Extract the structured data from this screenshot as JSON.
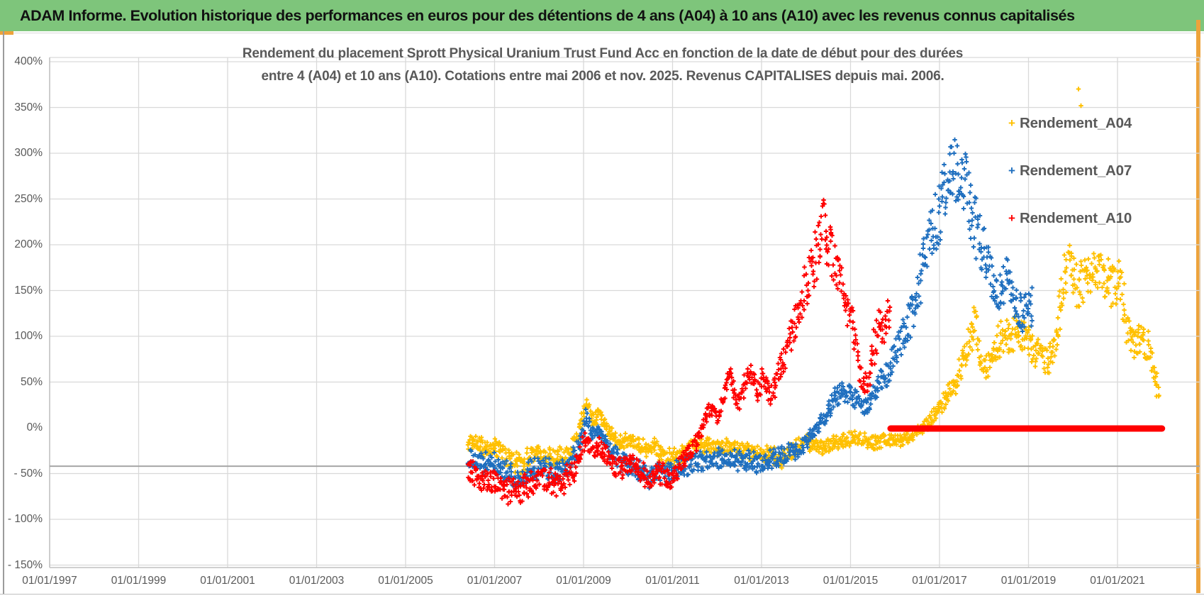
{
  "header": {
    "title": "ADAM Informe. Evolution historique des performances en euros pour des détentions de 4 ans (A04) à 10 ans (A10) avec les revenus connus capitalisés",
    "bar_color": "#7ec57b",
    "accent_color": "#eda33b"
  },
  "chart_data": {
    "type": "scatter",
    "title_line1": "Rendement du placement Sprott Physical Uranium Trust Fund Acc en fonction de la date de début pour des durées",
    "title_line2": "entre 4 (A04) et 10 ans (A10). Cotations entre mai 2006 et nov. 2025. Revenus CAPITALISES depuis mai. 2006.",
    "grid_color": "#d9d9d9",
    "axis_line_color": "#a6a6a6",
    "x_axis": {
      "range_years": [
        1997.0,
        2022.85
      ],
      "ticks": [
        {
          "year": 1997,
          "label": "01/01/1997"
        },
        {
          "year": 1999,
          "label": "01/01/1999"
        },
        {
          "year": 2001,
          "label": "01/01/2001"
        },
        {
          "year": 2003,
          "label": "01/01/2003"
        },
        {
          "year": 2005,
          "label": "01/01/2005"
        },
        {
          "year": 2007,
          "label": "01/01/2007"
        },
        {
          "year": 2009,
          "label": "01/01/2009"
        },
        {
          "year": 2011,
          "label": "01/01/2011"
        },
        {
          "year": 2013,
          "label": "01/01/2013"
        },
        {
          "year": 2015,
          "label": "01/01/2015"
        },
        {
          "year": 2017,
          "label": "01/01/2017"
        },
        {
          "year": 2019,
          "label": "01/01/2019"
        },
        {
          "year": 2021,
          "label": "01/01/2021"
        }
      ]
    },
    "y_axis": {
      "range_pct": [
        -150,
        400
      ],
      "gridline_step_pct": 50,
      "no_gridline_at": 0,
      "ticks": [
        {
          "value": 400,
          "label": "400%"
        },
        {
          "value": 350,
          "label": "350%"
        },
        {
          "value": 300,
          "label": "300%"
        },
        {
          "value": 250,
          "label": "250%"
        },
        {
          "value": 200,
          "label": "200%"
        },
        {
          "value": 150,
          "label": "150%"
        },
        {
          "value": 100,
          "label": "100%"
        },
        {
          "value": 50,
          "label": "50%"
        },
        {
          "value": 0,
          "label": "0%"
        },
        {
          "value": -50,
          "label": "- 50%"
        },
        {
          "value": -100,
          "label": "- 100%"
        },
        {
          "value": -150,
          "label": "- 150%"
        }
      ]
    },
    "horizontal_axis_line_at_pct": -42,
    "series": [
      {
        "name": "Rendement_A04",
        "color": "#FFC000",
        "marker": "+",
        "anchors": [
          [
            2006.4,
            -18
          ],
          [
            2006.6,
            -14
          ],
          [
            2006.8,
            -24
          ],
          [
            2007.0,
            -22
          ],
          [
            2007.3,
            -32
          ],
          [
            2007.55,
            -40
          ],
          [
            2007.8,
            -30
          ],
          [
            2008.1,
            -28
          ],
          [
            2008.4,
            -34
          ],
          [
            2008.7,
            -26
          ],
          [
            2008.95,
            5
          ],
          [
            2009.05,
            32
          ],
          [
            2009.2,
            8
          ],
          [
            2009.35,
            15
          ],
          [
            2009.5,
            2
          ],
          [
            2009.7,
            -12
          ],
          [
            2009.9,
            -16
          ],
          [
            2010.1,
            -14
          ],
          [
            2010.35,
            -22
          ],
          [
            2010.6,
            -20
          ],
          [
            2010.85,
            -30
          ],
          [
            2011.05,
            -34
          ],
          [
            2011.3,
            -24
          ],
          [
            2011.6,
            -16
          ],
          [
            2011.9,
            -22
          ],
          [
            2012.2,
            -18
          ],
          [
            2012.6,
            -26
          ],
          [
            2013.0,
            -28
          ],
          [
            2013.4,
            -34
          ],
          [
            2013.7,
            -24
          ],
          [
            2014.0,
            -16
          ],
          [
            2014.4,
            -20
          ],
          [
            2014.8,
            -14
          ],
          [
            2015.1,
            -10
          ],
          [
            2015.4,
            -16
          ],
          [
            2015.8,
            -14
          ],
          [
            2016.2,
            -12
          ],
          [
            2016.5,
            -5
          ],
          [
            2016.8,
            8
          ],
          [
            2017.1,
            30
          ],
          [
            2017.4,
            55
          ],
          [
            2017.6,
            85
          ],
          [
            2017.8,
            115
          ],
          [
            2017.95,
            70
          ],
          [
            2018.1,
            68
          ],
          [
            2018.35,
            95
          ],
          [
            2018.6,
            100
          ],
          [
            2018.8,
            105
          ],
          [
            2019.0,
            95
          ],
          [
            2019.2,
            80
          ],
          [
            2019.45,
            72
          ],
          [
            2019.65,
            110
          ],
          [
            2019.85,
            175
          ],
          [
            2019.95,
            185
          ],
          [
            2020.1,
            150
          ],
          [
            2020.45,
            170
          ],
          [
            2020.6,
            175
          ],
          [
            2020.75,
            165
          ],
          [
            2020.95,
            155
          ],
          [
            2021.05,
            170
          ],
          [
            2021.2,
            110
          ],
          [
            2021.35,
            90
          ],
          [
            2021.55,
            95
          ],
          [
            2021.7,
            85
          ],
          [
            2021.85,
            55
          ],
          [
            2021.95,
            40
          ]
        ],
        "outlier_points": [
          [
            2020.12,
            370
          ],
          [
            2020.18,
            352
          ]
        ]
      },
      {
        "name": "Rendement_A07",
        "color": "#1F6FBF",
        "marker": "+",
        "anchors": [
          [
            2006.4,
            -32
          ],
          [
            2006.7,
            -38
          ],
          [
            2007.0,
            -38
          ],
          [
            2007.3,
            -48
          ],
          [
            2007.55,
            -58
          ],
          [
            2007.8,
            -45
          ],
          [
            2008.1,
            -44
          ],
          [
            2008.4,
            -50
          ],
          [
            2008.7,
            -42
          ],
          [
            2008.95,
            -15
          ],
          [
            2009.05,
            15
          ],
          [
            2009.2,
            -10
          ],
          [
            2009.35,
            -5
          ],
          [
            2009.5,
            -18
          ],
          [
            2009.7,
            -30
          ],
          [
            2009.9,
            -38
          ],
          [
            2010.15,
            -45
          ],
          [
            2010.45,
            -55
          ],
          [
            2010.7,
            -48
          ],
          [
            2010.95,
            -50
          ],
          [
            2011.2,
            -42
          ],
          [
            2011.5,
            -35
          ],
          [
            2011.8,
            -38
          ],
          [
            2012.1,
            -32
          ],
          [
            2012.5,
            -35
          ],
          [
            2012.9,
            -38
          ],
          [
            2013.2,
            -35
          ],
          [
            2013.5,
            -30
          ],
          [
            2013.8,
            -25
          ],
          [
            2014.1,
            -10
          ],
          [
            2014.4,
            12
          ],
          [
            2014.7,
            35
          ],
          [
            2014.95,
            38
          ],
          [
            2015.2,
            30
          ],
          [
            2015.35,
            20
          ],
          [
            2015.6,
            45
          ],
          [
            2015.85,
            60
          ],
          [
            2016.1,
            95
          ],
          [
            2016.3,
            110
          ],
          [
            2016.5,
            150
          ],
          [
            2016.7,
            190
          ],
          [
            2016.9,
            225
          ],
          [
            2017.1,
            255
          ],
          [
            2017.35,
            285
          ],
          [
            2017.55,
            270
          ],
          [
            2017.7,
            245
          ],
          [
            2017.9,
            205
          ],
          [
            2018.1,
            175
          ],
          [
            2018.3,
            150
          ],
          [
            2018.5,
            165
          ],
          [
            2018.7,
            140
          ],
          [
            2018.9,
            120
          ],
          [
            2019.1,
            135
          ]
        ],
        "outlier_points": []
      },
      {
        "name": "Rendement_A10",
        "color": "#FF0000",
        "marker": "+",
        "anchors": [
          [
            2006.4,
            -48
          ],
          [
            2006.7,
            -55
          ],
          [
            2007.0,
            -58
          ],
          [
            2007.3,
            -68
          ],
          [
            2007.55,
            -73
          ],
          [
            2007.8,
            -60
          ],
          [
            2008.1,
            -55
          ],
          [
            2008.45,
            -62
          ],
          [
            2008.75,
            -50
          ],
          [
            2008.95,
            -25
          ],
          [
            2009.05,
            -8
          ],
          [
            2009.2,
            -28
          ],
          [
            2009.35,
            -20
          ],
          [
            2009.5,
            -30
          ],
          [
            2009.7,
            -42
          ],
          [
            2009.9,
            -45
          ],
          [
            2010.1,
            -40
          ],
          [
            2010.3,
            -48
          ],
          [
            2010.55,
            -55
          ],
          [
            2010.8,
            -50
          ],
          [
            2010.95,
            -55
          ],
          [
            2011.15,
            -45
          ],
          [
            2011.35,
            -28
          ],
          [
            2011.55,
            -15
          ],
          [
            2011.7,
            5
          ],
          [
            2011.85,
            25
          ],
          [
            2012.0,
            10
          ],
          [
            2012.15,
            35
          ],
          [
            2012.3,
            60
          ],
          [
            2012.45,
            25
          ],
          [
            2012.6,
            45
          ],
          [
            2012.75,
            65
          ],
          [
            2012.9,
            40
          ],
          [
            2013.05,
            55
          ],
          [
            2013.2,
            30
          ],
          [
            2013.35,
            55
          ],
          [
            2013.5,
            75
          ],
          [
            2013.65,
            95
          ],
          [
            2013.8,
            120
          ],
          [
            2013.95,
            150
          ],
          [
            2014.1,
            175
          ],
          [
            2014.25,
            195
          ],
          [
            2014.4,
            225
          ],
          [
            2014.5,
            200
          ],
          [
            2014.6,
            185
          ],
          [
            2014.75,
            165
          ],
          [
            2014.9,
            130
          ],
          [
            2015.05,
            115
          ],
          [
            2015.2,
            60
          ],
          [
            2015.35,
            45
          ],
          [
            2015.5,
            80
          ],
          [
            2015.65,
            120
          ],
          [
            2015.8,
            100
          ],
          [
            2015.9,
            140
          ]
        ],
        "outlier_points": [],
        "flat_line": {
          "from_year": 2015.9,
          "to_year": 2022.0,
          "value_pct": 0,
          "thickness_px": 9
        }
      }
    ],
    "legend": {
      "position": "right",
      "items": [
        "Rendement_A04",
        "Rendement_A07",
        "Rendement_A10"
      ]
    }
  }
}
